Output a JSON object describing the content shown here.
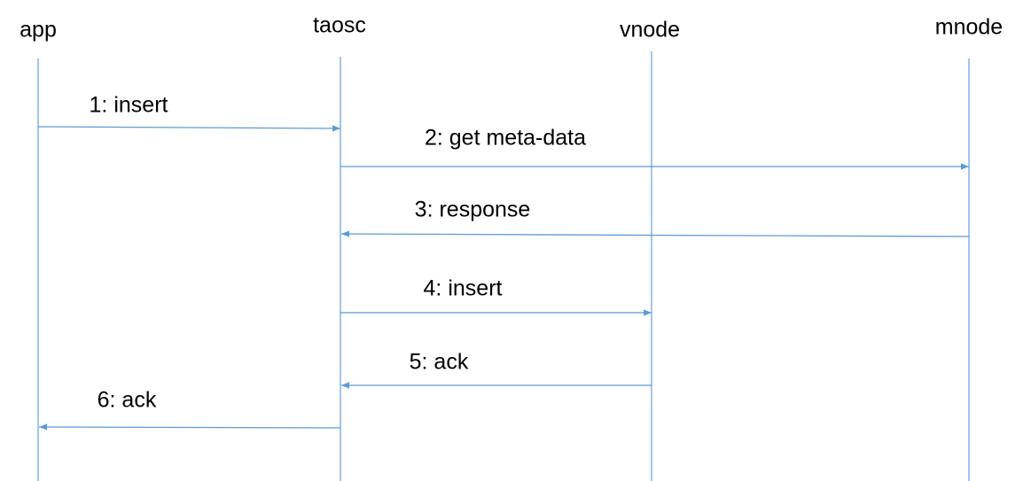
{
  "participants": [
    {
      "label": "app"
    },
    {
      "label": "taosc"
    },
    {
      "label": "vnode"
    },
    {
      "label": "mnode"
    }
  ],
  "messages": [
    {
      "label": "1: insert"
    },
    {
      "label": "2: get meta-data"
    },
    {
      "label": "3: response"
    },
    {
      "label": "4: insert"
    },
    {
      "label": "5: ack"
    },
    {
      "label": "6: ack"
    }
  ]
}
